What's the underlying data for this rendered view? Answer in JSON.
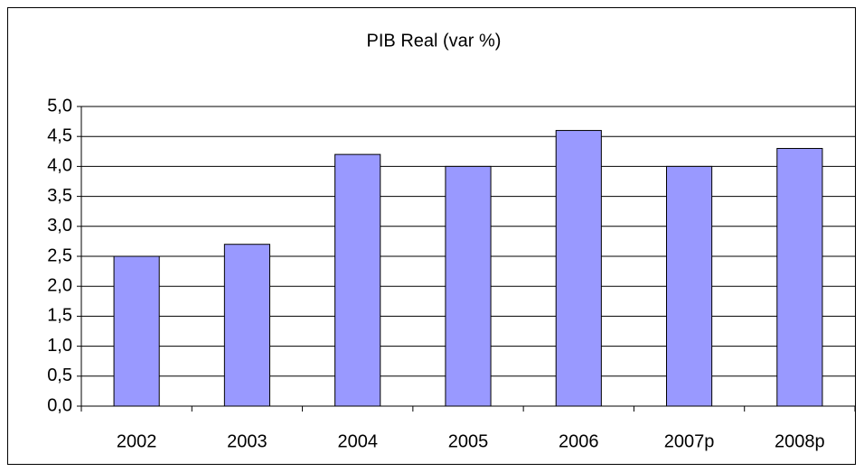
{
  "chart_data": {
    "type": "bar",
    "title": "PIB Real (var %)",
    "categories": [
      "2002",
      "2003",
      "2004",
      "2005",
      "2006",
      "2007p",
      "2008p"
    ],
    "values": [
      2.5,
      2.7,
      4.2,
      4.0,
      4.6,
      4.0,
      4.3
    ],
    "color": "#9999ff",
    "ylim": [
      0,
      5
    ],
    "yticks": [
      {
        "value": 0,
        "label": "0,0"
      },
      {
        "value": 0.5,
        "label": "0,5"
      },
      {
        "value": 1,
        "label": "1,0"
      },
      {
        "value": 1.5,
        "label": "1,5"
      },
      {
        "value": 2,
        "label": "2,0"
      },
      {
        "value": 2.5,
        "label": "2,5"
      },
      {
        "value": 3,
        "label": "3,0"
      },
      {
        "value": 3.5,
        "label": "3,5"
      },
      {
        "value": 4,
        "label": "4,0"
      },
      {
        "value": 4.5,
        "label": "4,5"
      },
      {
        "value": 5,
        "label": "5,0"
      }
    ],
    "grid": true
  }
}
